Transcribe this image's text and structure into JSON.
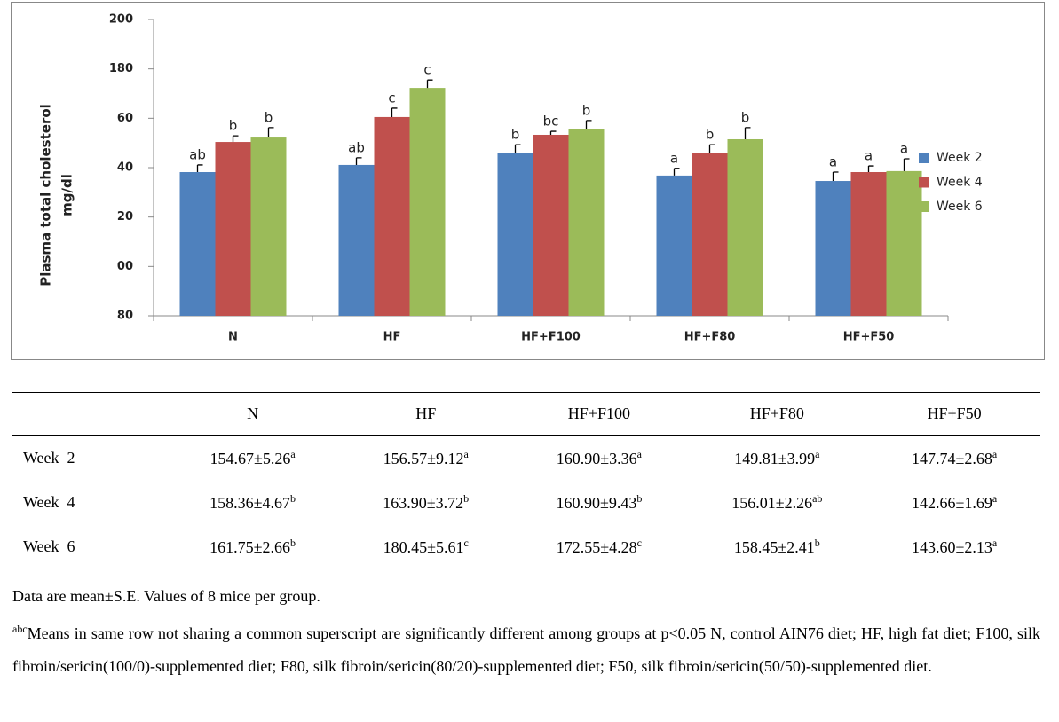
{
  "chart_data": {
    "type": "bar",
    "ylabel": [
      "Plasma total cholesterol",
      "mg/dl"
    ],
    "categories": [
      "N",
      "HF",
      "HF+F100",
      "HF+F80",
      "HF+F50"
    ],
    "series": [
      {
        "name": "Week 2",
        "color": "#4f81bd",
        "values": [
          138.2,
          141.1,
          146.1,
          136.8,
          134.6
        ],
        "errors": [
          2.9,
          2.9,
          3.2,
          2.9,
          3.6
        ],
        "letters": [
          "ab",
          "ab",
          "b",
          "a",
          "a"
        ]
      },
      {
        "name": "Week 4",
        "color": "#c0504d",
        "values": [
          150.4,
          160.5,
          153.3,
          146.1,
          138.2
        ],
        "errors": [
          2.5,
          3.6,
          1.4,
          3.2,
          2.5
        ],
        "letters": [
          "b",
          "c",
          "bc",
          "b",
          "a"
        ]
      },
      {
        "name": "Week 6",
        "color": "#9bbb59",
        "values": [
          152.2,
          172.3,
          155.5,
          151.5,
          138.6
        ],
        "errors": [
          4,
          3.2,
          3.6,
          4.7,
          5
        ],
        "letters": [
          "b",
          "c",
          "b",
          "b",
          "a"
        ]
      }
    ],
    "ylim": [
      80,
      200
    ],
    "yticks": [
      80,
      {
        "value": 100,
        "label": "00"
      },
      {
        "value": 120,
        "label": "20"
      },
      {
        "value": 140,
        "label": "40"
      },
      {
        "value": 160,
        "label": "60"
      },
      180,
      200
    ],
    "grid": false,
    "legend": "right"
  },
  "table": {
    "header": [
      "N",
      "HF",
      "HF+F100",
      "HF+F80",
      "HF+F50"
    ],
    "rows": [
      {
        "label": "Week  2",
        "cells": [
          {
            "text": "154.67±5.26",
            "sup": "a"
          },
          {
            "text": "156.57±9.12",
            "sup": "a"
          },
          {
            "text": "160.90±3.36",
            "sup": "a"
          },
          {
            "text": "149.81±3.99",
            "sup": "a"
          },
          {
            "text": "147.74±2.68",
            "sup": "a"
          }
        ]
      },
      {
        "label": "Week  4",
        "cells": [
          {
            "text": "158.36±4.67",
            "sup": "b"
          },
          {
            "text": "163.90±3.72",
            "sup": "b"
          },
          {
            "text": "160.90±9.43",
            "sup": "b"
          },
          {
            "text": "156.01±2.26",
            "sup": "ab"
          },
          {
            "text": "142.66±1.69",
            "sup": "a"
          }
        ]
      },
      {
        "label": "Week  6",
        "cells": [
          {
            "text": "161.75±2.66",
            "sup": "b"
          },
          {
            "text": "180.45±5.61",
            "sup": "c"
          },
          {
            "text": "172.55±4.28",
            "sup": "c"
          },
          {
            "text": "158.45±2.41",
            "sup": "b"
          },
          {
            "text": "143.60±2.13",
            "sup": "a"
          }
        ]
      }
    ]
  },
  "notes": {
    "line1": "Data are mean±S.E. Values of 8 mice per group.",
    "sup": "abc",
    "line2": "Means in same row not sharing a common superscript are significantly different among groups at p<0.05 N, control AIN76 diet; HF, high fat diet; F100, silk fibroin/sericin(100/0)-supplemented diet; F80, silk fibroin/sericin(80/20)-supplemented diet; F50, silk fibroin/sericin(50/50)-supplemented diet."
  }
}
